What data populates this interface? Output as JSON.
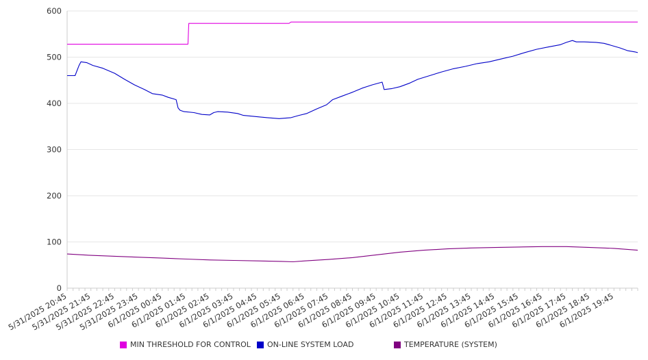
{
  "chart_data": {
    "type": "line",
    "title": "",
    "xlabel": "",
    "ylabel": "",
    "ylim": [
      0,
      600
    ],
    "yticks": [
      0,
      100,
      200,
      300,
      400,
      500,
      600
    ],
    "grid": "horizontal",
    "legend_position": "bottom",
    "x_tick_labels": [
      "5/31/2025 20:45",
      "5/31/2025 21:45",
      "5/31/2025 22:45",
      "5/31/2025 23:45",
      "6/1/2025 00:45",
      "6/1/2025 01:45",
      "6/1/2025 02:45",
      "6/1/2025 03:45",
      "6/1/2025 04:45",
      "6/1/2025 05:45",
      "6/1/2025 06:45",
      "6/1/2025 07:45",
      "6/1/2025 08:45",
      "6/1/2025 09:45",
      "6/1/2025 10:45",
      "6/1/2025 11:45",
      "6/1/2025 12:45",
      "6/1/2025 13:45",
      "6/1/2025 14:45",
      "6/1/2025 15:45",
      "6/1/2025 16:45",
      "6/1/2025 17:45",
      "6/1/2025 18:45",
      "6/1/2025 19:45"
    ],
    "x_range": [
      "5/31/2025 20:45",
      "6/1/2025 20:45"
    ],
    "series": [
      {
        "name": "MIN THRESHOLD FOR CONTROL",
        "color": "#e000e0",
        "points": [
          [
            "5/31/2025 20:45",
            528
          ],
          [
            "6/1/2025 01:50",
            528
          ],
          [
            "6/1/2025 01:52",
            573
          ],
          [
            "6/1/2025 06:05",
            573
          ],
          [
            "6/1/2025 06:10",
            576
          ],
          [
            "6/1/2025 20:45",
            576
          ]
        ]
      },
      {
        "name": "ON-LINE SYSTEM LOAD",
        "color": "#0000c8",
        "points": [
          [
            "5/31/2025 20:45",
            460
          ],
          [
            "5/31/2025 21:05",
            460
          ],
          [
            "5/31/2025 21:15",
            482
          ],
          [
            "5/31/2025 21:20",
            490
          ],
          [
            "5/31/2025 21:35",
            488
          ],
          [
            "5/31/2025 21:50",
            482
          ],
          [
            "5/31/2025 22:15",
            476
          ],
          [
            "5/31/2025 22:45",
            465
          ],
          [
            "5/31/2025 23:10",
            452
          ],
          [
            "5/31/2025 23:35",
            440
          ],
          [
            "6/1/2025 00:00",
            430
          ],
          [
            "6/1/2025 00:20",
            421
          ],
          [
            "6/1/2025 00:45",
            418
          ],
          [
            "6/1/2025 01:00",
            413
          ],
          [
            "6/1/2025 01:20",
            408
          ],
          [
            "6/1/2025 01:25",
            390
          ],
          [
            "6/1/2025 01:30",
            385
          ],
          [
            "6/1/2025 01:40",
            382
          ],
          [
            "6/1/2025 02:05",
            380
          ],
          [
            "6/1/2025 02:25",
            376
          ],
          [
            "6/1/2025 02:45",
            375
          ],
          [
            "6/1/2025 02:55",
            380
          ],
          [
            "6/1/2025 03:05",
            382
          ],
          [
            "6/1/2025 03:30",
            381
          ],
          [
            "6/1/2025 03:55",
            378
          ],
          [
            "6/1/2025 04:10",
            374
          ],
          [
            "6/1/2025 04:45",
            371
          ],
          [
            "6/1/2025 05:10",
            369
          ],
          [
            "6/1/2025 05:40",
            367
          ],
          [
            "6/1/2025 06:10",
            369
          ],
          [
            "6/1/2025 06:30",
            374
          ],
          [
            "6/1/2025 06:50",
            378
          ],
          [
            "6/1/2025 07:15",
            388
          ],
          [
            "6/1/2025 07:40",
            397
          ],
          [
            "6/1/2025 07:55",
            408
          ],
          [
            "6/1/2025 08:20",
            416
          ],
          [
            "6/1/2025 08:45",
            424
          ],
          [
            "6/1/2025 09:10",
            433
          ],
          [
            "6/1/2025 09:35",
            440
          ],
          [
            "6/1/2025 10:00",
            446
          ],
          [
            "6/1/2025 10:05",
            430
          ],
          [
            "6/1/2025 10:25",
            432
          ],
          [
            "6/1/2025 10:45",
            436
          ],
          [
            "6/1/2025 11:10",
            444
          ],
          [
            "6/1/2025 11:30",
            452
          ],
          [
            "6/1/2025 12:00",
            460
          ],
          [
            "6/1/2025 12:30",
            468
          ],
          [
            "6/1/2025 13:00",
            475
          ],
          [
            "6/1/2025 13:30",
            480
          ],
          [
            "6/1/2025 14:00",
            486
          ],
          [
            "6/1/2025 14:30",
            490
          ],
          [
            "6/1/2025 15:00",
            496
          ],
          [
            "6/1/2025 15:30",
            502
          ],
          [
            "6/1/2025 16:00",
            510
          ],
          [
            "6/1/2025 16:30",
            517
          ],
          [
            "6/1/2025 17:00",
            522
          ],
          [
            "6/1/2025 17:30",
            527
          ],
          [
            "6/1/2025 17:45",
            532
          ],
          [
            "6/1/2025 18:00",
            536
          ],
          [
            "6/1/2025 18:10",
            533
          ],
          [
            "6/1/2025 18:30",
            533
          ],
          [
            "6/1/2025 19:00",
            532
          ],
          [
            "6/1/2025 19:20",
            530
          ],
          [
            "6/1/2025 19:40",
            525
          ],
          [
            "6/1/2025 20:00",
            520
          ],
          [
            "6/1/2025 20:20",
            514
          ],
          [
            "6/1/2025 20:40",
            511
          ],
          [
            "6/1/2025 20:45",
            510
          ]
        ]
      },
      {
        "name": "TEMPERATURE (SYSTEM)",
        "color": "#800080",
        "points": [
          [
            "5/31/2025 20:45",
            74
          ],
          [
            "5/31/2025 21:45",
            71
          ],
          [
            "5/31/2025 22:45",
            69
          ],
          [
            "5/31/2025 23:45",
            67
          ],
          [
            "6/1/2025 00:45",
            65
          ],
          [
            "6/1/2025 01:45",
            63
          ],
          [
            "6/1/2025 02:45",
            61
          ],
          [
            "6/1/2025 03:45",
            60
          ],
          [
            "6/1/2025 04:45",
            59
          ],
          [
            "6/1/2025 05:45",
            58
          ],
          [
            "6/1/2025 06:15",
            57
          ],
          [
            "6/1/2025 06:45",
            59
          ],
          [
            "6/1/2025 07:45",
            62
          ],
          [
            "6/1/2025 08:45",
            66
          ],
          [
            "6/1/2025 09:45",
            72
          ],
          [
            "6/1/2025 10:45",
            78
          ],
          [
            "6/1/2025 11:45",
            82
          ],
          [
            "6/1/2025 12:45",
            85
          ],
          [
            "6/1/2025 13:45",
            87
          ],
          [
            "6/1/2025 14:45",
            88
          ],
          [
            "6/1/2025 15:45",
            89
          ],
          [
            "6/1/2025 16:45",
            90
          ],
          [
            "6/1/2025 17:45",
            90
          ],
          [
            "6/1/2025 18:45",
            88
          ],
          [
            "6/1/2025 19:45",
            86
          ],
          [
            "6/1/2025 20:45",
            82
          ]
        ]
      }
    ]
  }
}
